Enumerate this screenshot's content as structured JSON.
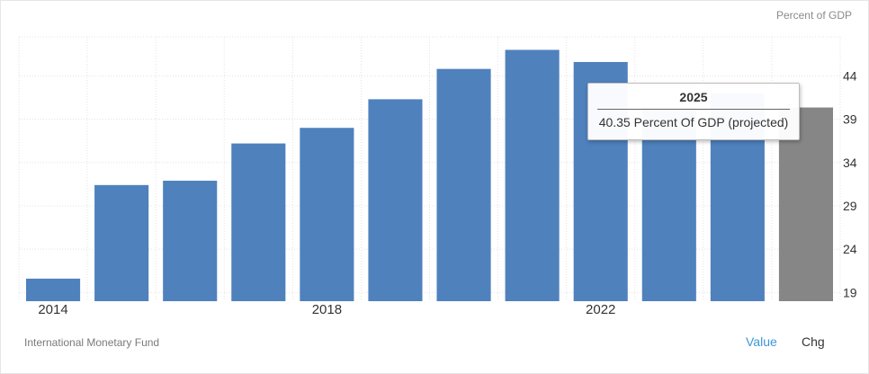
{
  "header": {
    "unit_label": "Percent of GDP"
  },
  "footer": {
    "source": "International Monetary Fund",
    "toggle_value": "Value",
    "toggle_chg": "Chg"
  },
  "tooltip": {
    "title": "2025",
    "body": "40.35 Percent Of GDP (projected)"
  },
  "colors": {
    "bar": "#4f81bd",
    "bar_projected": "#868686",
    "accent": "#3d96d6"
  },
  "chart_data": {
    "type": "bar",
    "categories": [
      "2014",
      "2015",
      "2016",
      "2017",
      "2018",
      "2019",
      "2020",
      "2021",
      "2022",
      "2023",
      "2024",
      "2025"
    ],
    "values": [
      20.6,
      31.4,
      31.9,
      36.2,
      38.0,
      41.3,
      44.8,
      47.0,
      45.6,
      40.4,
      42.0,
      40.35
    ],
    "projected": [
      false,
      false,
      false,
      false,
      false,
      false,
      false,
      false,
      false,
      false,
      false,
      true
    ],
    "x_tick_labels": [
      "2014",
      "2018",
      "2022"
    ],
    "y_ticks": [
      19,
      24,
      29,
      34,
      39,
      44
    ],
    "ylim": [
      18,
      48.5
    ],
    "title": "",
    "xlabel": "",
    "ylabel": "Percent of GDP",
    "grid": true,
    "legend": "none"
  }
}
